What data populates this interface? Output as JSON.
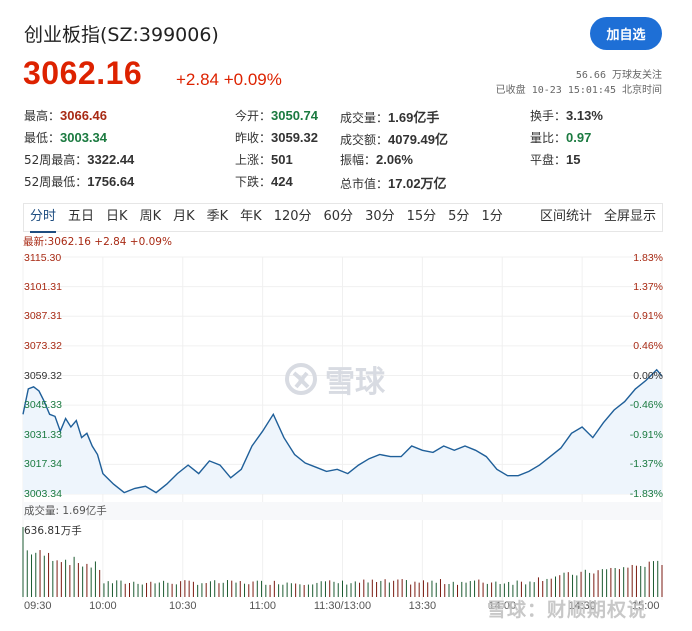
{
  "header": {
    "title": "创业板指(SZ:399006)",
    "price": "3062.16",
    "change": "+2.84 +0.09%",
    "add_button": "加自选",
    "followers": "56.66 万球友关注",
    "status": "已收盘 10-23 15:01:45 北京时间"
  },
  "stats": [
    {
      "label": "最高：",
      "value": "3066.46",
      "tone": "up"
    },
    {
      "label": "今开：",
      "value": "3050.74",
      "tone": "down"
    },
    {
      "label": "成交量：",
      "value": "1.69亿手",
      "tone": ""
    },
    {
      "label": "换手：",
      "value": "3.13%",
      "tone": ""
    },
    {
      "label": "最低：",
      "value": "3003.34",
      "tone": "down"
    },
    {
      "label": "昨收：",
      "value": "3059.32",
      "tone": ""
    },
    {
      "label": "成交额：",
      "value": "4079.49亿",
      "tone": ""
    },
    {
      "label": "量比：",
      "value": "0.97",
      "tone": "down"
    },
    {
      "label": "52周最高：",
      "value": "3322.44",
      "tone": ""
    },
    {
      "label": "上涨：",
      "value": "501",
      "tone": ""
    },
    {
      "label": "振幅：",
      "value": "2.06%",
      "tone": ""
    },
    {
      "label": "平盘：",
      "value": "15",
      "tone": ""
    },
    {
      "label": "52周最低：",
      "value": "1756.64",
      "tone": ""
    },
    {
      "label": "下跌：",
      "value": "424",
      "tone": ""
    },
    {
      "label": "总市值：",
      "value": "17.02万亿",
      "tone": ""
    }
  ],
  "tabs": [
    "分时",
    "五日",
    "日K",
    "周K",
    "月K",
    "季K",
    "年K",
    "120分",
    "60分",
    "30分",
    "15分",
    "5分",
    "1分"
  ],
  "active_tab": 0,
  "tools": [
    "区间统计",
    "全屏显示"
  ],
  "latest_line": "最新:3062.16 +2.84 +0.09%",
  "volume_label": "成交量: 1.69亿手",
  "volume_max": "636.81万手",
  "watermark": "雪球",
  "footer_watermark": "雪球：财顺期权说",
  "colors": {
    "up": "#a82a14",
    "down": "#1b7a40",
    "line": "#1f5f99",
    "fill": "#eef5fc",
    "accent": "#1e6fd6"
  },
  "chart_data": {
    "type": "line",
    "title": "创业板指 分时",
    "xlabel": "",
    "ylabel": "",
    "x_ticks": [
      "09:30",
      "10:00",
      "10:30",
      "11:00",
      "11:30/13:00",
      "13:30",
      "14:00",
      "14:30",
      "15:00"
    ],
    "y_ticks_left": [
      "3115.30",
      "3101.31",
      "3087.31",
      "3073.32",
      "3059.32",
      "3045.33",
      "3031.33",
      "3017.34",
      "3003.34"
    ],
    "y_ticks_right": [
      "1.83%",
      "1.37%",
      "0.91%",
      "0.46%",
      "0.00%",
      "-0.46%",
      "-0.91%",
      "-1.37%",
      "-1.83%"
    ],
    "ylim": [
      3003.34,
      3115.3
    ],
    "prev_close": 3059.32,
    "series": [
      {
        "name": "price",
        "x_minutes": [
          0,
          2,
          4,
          6,
          8,
          10,
          12,
          14,
          16,
          18,
          20,
          22,
          24,
          26,
          28,
          30,
          34,
          38,
          42,
          46,
          50,
          54,
          58,
          62,
          66,
          70,
          74,
          78,
          82,
          86,
          90,
          94,
          98,
          102,
          106,
          110,
          114,
          118,
          122,
          126,
          130,
          134,
          138,
          142,
          146,
          150,
          154,
          158,
          162,
          166,
          170,
          174,
          178,
          182,
          186,
          190,
          194,
          198,
          202,
          206,
          210,
          214,
          218,
          222,
          226,
          230,
          234,
          238,
          240
        ],
        "values": [
          3041,
          3053,
          3054,
          3052,
          3047,
          3041,
          3040,
          3033,
          3039,
          3035,
          3038,
          3030,
          3032,
          3026,
          3022,
          3013,
          3008,
          3004,
          3006,
          3007,
          3004,
          3008,
          3013,
          3017,
          3013,
          3019,
          3017,
          3011,
          3015,
          3026,
          3033,
          3041,
          3030,
          3022,
          3018,
          3016,
          3014,
          3015,
          3013,
          3017,
          3020,
          3022,
          3021,
          3021,
          3026,
          3024,
          3023,
          3026,
          3024,
          3026,
          3024,
          3021,
          3015,
          3012,
          3012,
          3014,
          3017,
          3021,
          3025,
          3032,
          3035,
          3030,
          3037,
          3043,
          3047,
          3053,
          3057,
          3062,
          3059
        ]
      },
      {
        "name": "volume",
        "unit": "万手",
        "max": 636.81
      }
    ]
  }
}
